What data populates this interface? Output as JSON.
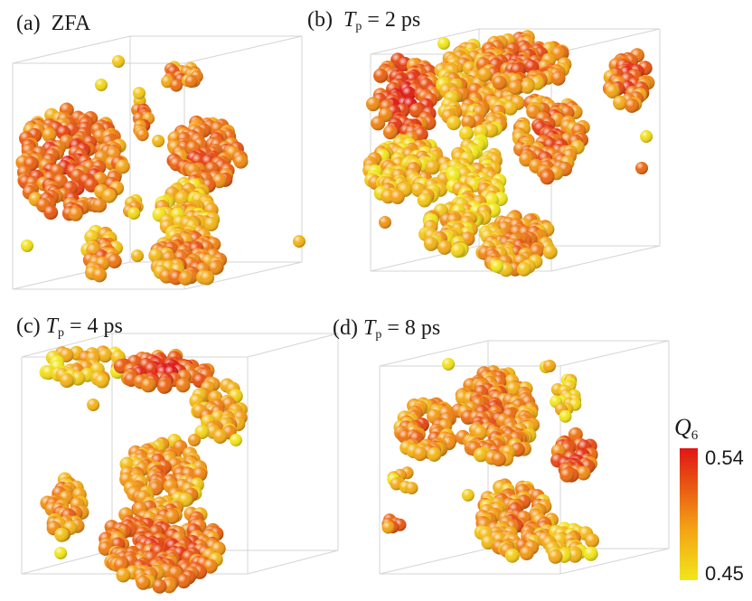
{
  "panels": [
    {
      "id": "a",
      "label": "(a)",
      "name": "ZFA"
    },
    {
      "id": "b",
      "label": "(b)",
      "var": "T",
      "sub": "p",
      "eq": " = 2 ps"
    },
    {
      "id": "c",
      "label": "(c)",
      "var": "T",
      "sub": "p",
      "eq": " = 4 ps"
    },
    {
      "id": "d",
      "label": "(d)",
      "var": "T",
      "sub": "p",
      "eq": " = 8 ps"
    }
  ],
  "colorbar": {
    "var": "Q",
    "sub": "6",
    "max_label": "0.54",
    "min_label": "0.45",
    "colors": [
      "#e01616",
      "#ea5a12",
      "#f4a016",
      "#f2e61a"
    ]
  }
}
